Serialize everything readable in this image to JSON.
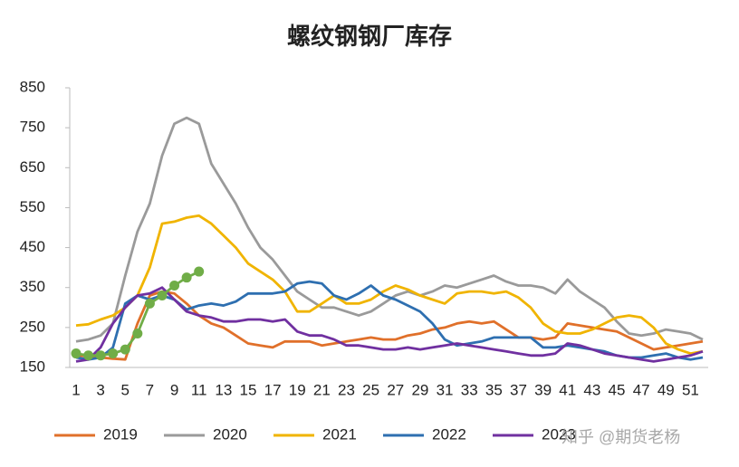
{
  "chart_data": {
    "type": "line",
    "title": "螺纹钢钢厂库存",
    "categories": [
      1,
      null,
      3,
      null,
      5,
      null,
      7,
      null,
      9,
      null,
      11,
      null,
      13,
      null,
      15,
      null,
      17,
      null,
      19,
      null,
      21,
      null,
      23,
      null,
      25,
      null,
      27,
      null,
      29,
      null,
      31,
      null,
      33,
      null,
      35,
      null,
      37,
      null,
      39,
      null,
      41,
      null,
      43,
      null,
      45,
      null,
      47,
      null,
      49,
      null,
      51,
      null
    ],
    "ylim": [
      150,
      850
    ],
    "yticks": [
      150,
      250,
      350,
      450,
      550,
      650,
      750,
      850
    ],
    "series": [
      {
        "name": "2019",
        "color": "#e0702a",
        "values": [
          180,
          178,
          175,
          172,
          170,
          260,
          330,
          340,
          335,
          310,
          280,
          260,
          250,
          230,
          210,
          205,
          200,
          215,
          215,
          215,
          205,
          210,
          215,
          220,
          225,
          220,
          220,
          230,
          235,
          245,
          250,
          260,
          265,
          260,
          265,
          245,
          225,
          225,
          220,
          225,
          260,
          255,
          250,
          245,
          240,
          225,
          210,
          195,
          200,
          205,
          210,
          215
        ]
      },
      {
        "name": "2020",
        "color": "#9a9a9a",
        "values": [
          215,
          220,
          230,
          260,
          380,
          490,
          560,
          680,
          760,
          775,
          760,
          660,
          610,
          560,
          500,
          450,
          420,
          380,
          340,
          320,
          300,
          300,
          290,
          280,
          290,
          310,
          330,
          340,
          330,
          340,
          355,
          350,
          360,
          370,
          380,
          365,
          355,
          355,
          350,
          335,
          370,
          340,
          320,
          300,
          265,
          235,
          230,
          235,
          245,
          240,
          235,
          220
        ]
      },
      {
        "name": "2021",
        "color": "#f0b400",
        "values": [
          255,
          258,
          270,
          280,
          300,
          330,
          400,
          510,
          515,
          525,
          530,
          510,
          480,
          450,
          410,
          390,
          370,
          340,
          290,
          290,
          310,
          330,
          310,
          310,
          320,
          340,
          355,
          345,
          330,
          320,
          310,
          335,
          340,
          340,
          335,
          340,
          325,
          300,
          260,
          240,
          235,
          235,
          245,
          260,
          275,
          280,
          275,
          250,
          210,
          195,
          185,
          190
        ]
      },
      {
        "name": "2022",
        "color": "#2e6fb0",
        "values": [
          175,
          170,
          175,
          200,
          310,
          330,
          320,
          330,
          320,
          295,
          305,
          310,
          305,
          315,
          335,
          335,
          335,
          340,
          360,
          365,
          360,
          330,
          320,
          335,
          355,
          330,
          320,
          305,
          290,
          260,
          220,
          205,
          210,
          215,
          225,
          225,
          225,
          225,
          200,
          200,
          205,
          200,
          195,
          190,
          180,
          175,
          175,
          180,
          185,
          175,
          170,
          175
        ]
      },
      {
        "name": "2023",
        "color": "#7030a0",
        "values": [
          165,
          170,
          200,
          260,
          300,
          330,
          335,
          350,
          320,
          290,
          280,
          275,
          265,
          265,
          270,
          270,
          265,
          270,
          240,
          230,
          230,
          220,
          205,
          205,
          200,
          195,
          195,
          200,
          195,
          200,
          205,
          210,
          205,
          200,
          195,
          190,
          185,
          180,
          180,
          185,
          210,
          205,
          195,
          185,
          180,
          175,
          170,
          165,
          170,
          175,
          180,
          190
        ]
      },
      {
        "color": "#70ad47",
        "markers": true,
        "values": [
          185,
          180,
          180,
          185,
          195,
          235,
          310,
          330,
          355,
          375,
          390,
          null,
          null,
          null,
          null,
          null,
          null,
          null,
          null,
          null,
          null,
          null,
          null,
          null,
          null,
          null,
          null,
          null,
          null,
          null,
          null,
          null,
          null,
          null,
          null,
          null,
          null,
          null,
          null,
          null,
          null,
          null,
          null,
          null,
          null,
          null,
          null,
          null,
          null,
          null,
          null,
          null
        ]
      }
    ],
    "watermark": "知乎 @期货老杨"
  }
}
